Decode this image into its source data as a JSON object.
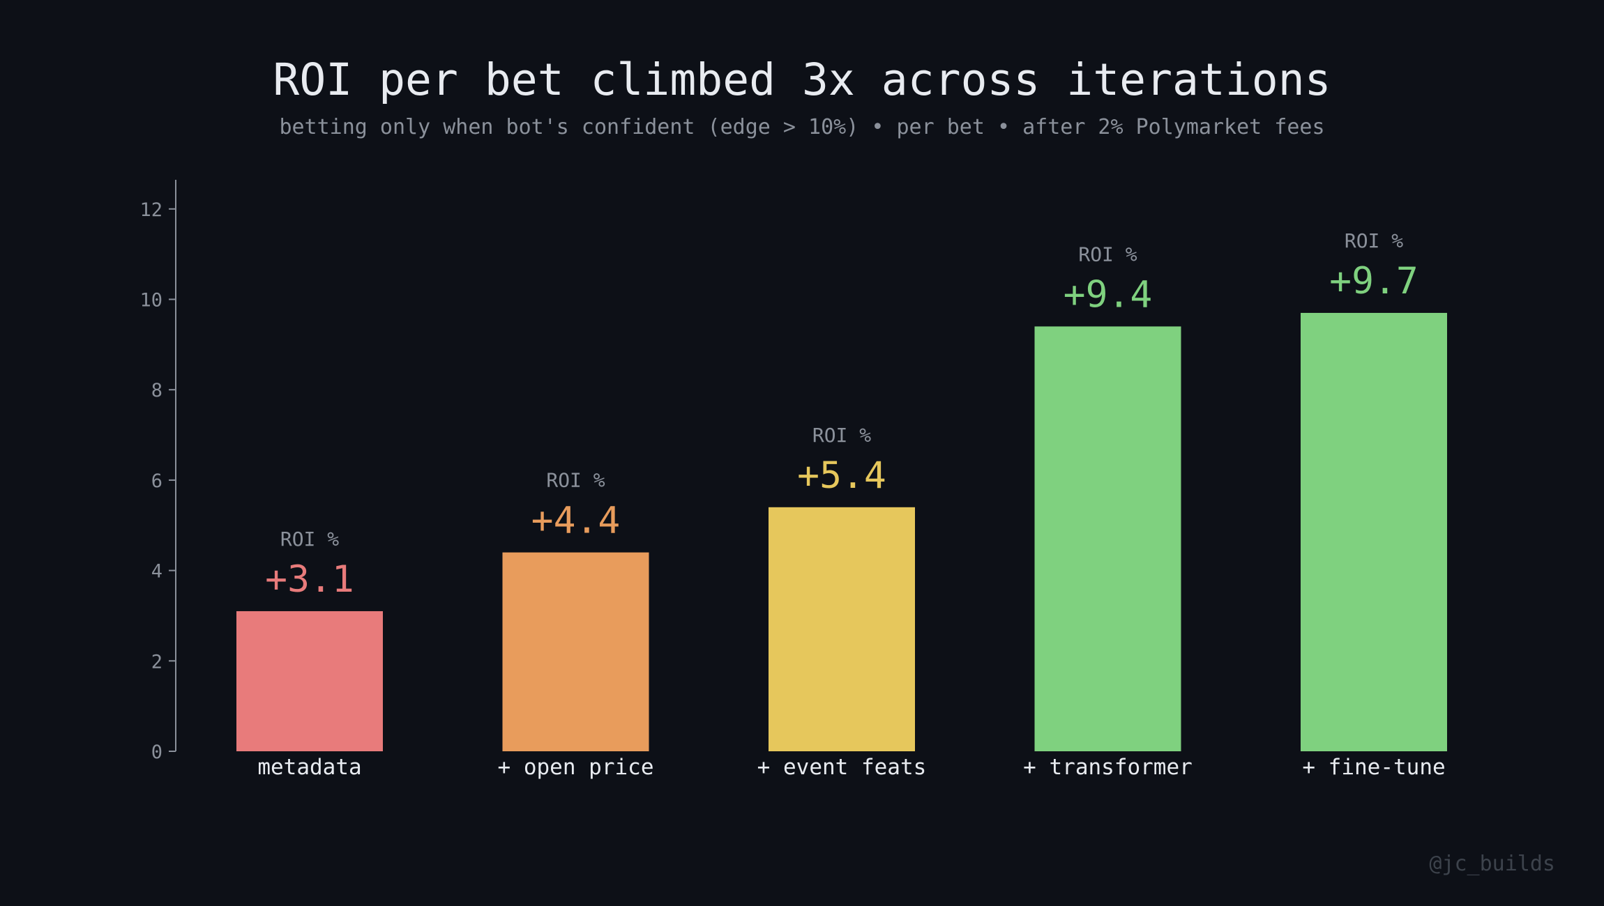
{
  "chart_data": {
    "type": "bar",
    "title": "ROI per bet climbed 3x across iterations",
    "subtitle": "betting only when bot's confident (edge > 10%) •  per bet • after 2% Polymarket fees",
    "categories": [
      "metadata",
      "+ open price",
      "+ event feats",
      "+ transformer",
      "+ fine-tune"
    ],
    "values": [
      3.1,
      4.4,
      5.4,
      9.4,
      9.7
    ],
    "value_labels": [
      "+3.1",
      "+4.4",
      "+5.4",
      "+9.4",
      "+9.7"
    ],
    "bar_caption": "ROI %",
    "colors": [
      "#e87b7b",
      "#e89c5c",
      "#e6c75c",
      "#7fd17f",
      "#7fd17f"
    ],
    "ylim": [
      0,
      12.6
    ],
    "yticks": [
      0,
      2,
      4,
      6,
      8,
      10,
      12
    ],
    "xlabel": "",
    "ylabel": "",
    "grid": false,
    "legend": "none"
  },
  "watermark": "@jc_builds",
  "colors": {
    "background": "#0d1017",
    "title": "#e8ebf0",
    "muted": "#8b919b",
    "axis": "#8b919b"
  }
}
